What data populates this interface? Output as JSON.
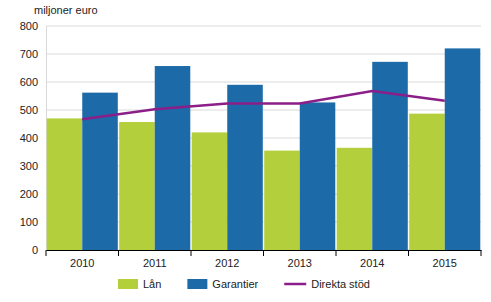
{
  "chart_data": {
    "type": "bar",
    "y_label": "miljoner euro",
    "categories": [
      "2010",
      "2011",
      "2012",
      "2013",
      "2014",
      "2015"
    ],
    "series": [
      {
        "name": "Lån",
        "type": "bar",
        "color": "#b3cf3b",
        "values": [
          470,
          457,
          420,
          355,
          365,
          487
        ]
      },
      {
        "name": "Garantier",
        "type": "bar",
        "color": "#1c6aa8",
        "values": [
          562,
          657,
          590,
          527,
          672,
          720
        ]
      },
      {
        "name": "Direkta stöd",
        "type": "line",
        "color": "#8b1e88",
        "values": [
          467,
          503,
          523,
          523,
          568,
          533
        ]
      }
    ],
    "ylim": [
      0,
      800
    ],
    "yticks": [
      0,
      100,
      200,
      300,
      400,
      500,
      600,
      700,
      800
    ],
    "grid": true,
    "legend": "bottom"
  }
}
